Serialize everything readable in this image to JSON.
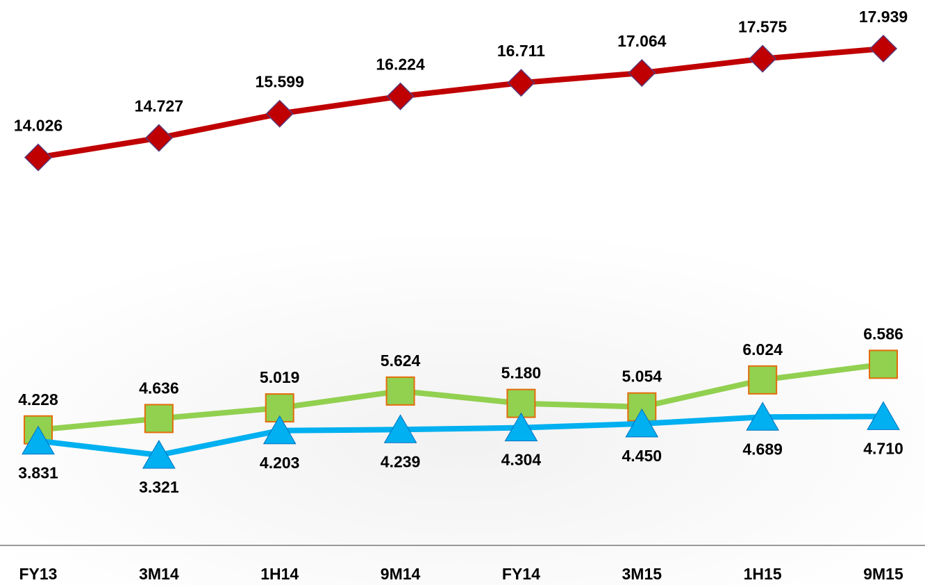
{
  "chart_data": {
    "type": "line",
    "categories": [
      "FY13",
      "3M14",
      "1H14",
      "9M14",
      "FY14",
      "3M15",
      "1H15",
      "9M15"
    ],
    "series": [
      {
        "color": "#c00000",
        "marker": "diamond",
        "values": [
          14.026,
          14.727,
          15.599,
          16.224,
          16.711,
          17.064,
          17.575,
          17.939
        ],
        "value_labels": [
          "14.026",
          "14.727",
          "15.599",
          "16.224",
          "16.711",
          "17.064",
          "17.575",
          "17.939"
        ]
      },
      {
        "color": "#92d050",
        "marker": "square",
        "values": [
          4.228,
          4.636,
          5.019,
          5.624,
          5.18,
          5.054,
          6.024,
          6.586
        ],
        "value_labels": [
          "4.228",
          "4.636",
          "5.019",
          "5.624",
          "5.180",
          "5.054",
          "6.024",
          "6.586"
        ]
      },
      {
        "color": "#00b0f0",
        "marker": "triangle",
        "values": [
          3.831,
          3.321,
          4.203,
          4.239,
          4.304,
          4.45,
          4.689,
          4.71
        ],
        "value_labels": [
          "3.831",
          "3.321",
          "4.203",
          "4.239",
          "4.304",
          "4.450",
          "4.689",
          "4.710"
        ]
      }
    ]
  }
}
